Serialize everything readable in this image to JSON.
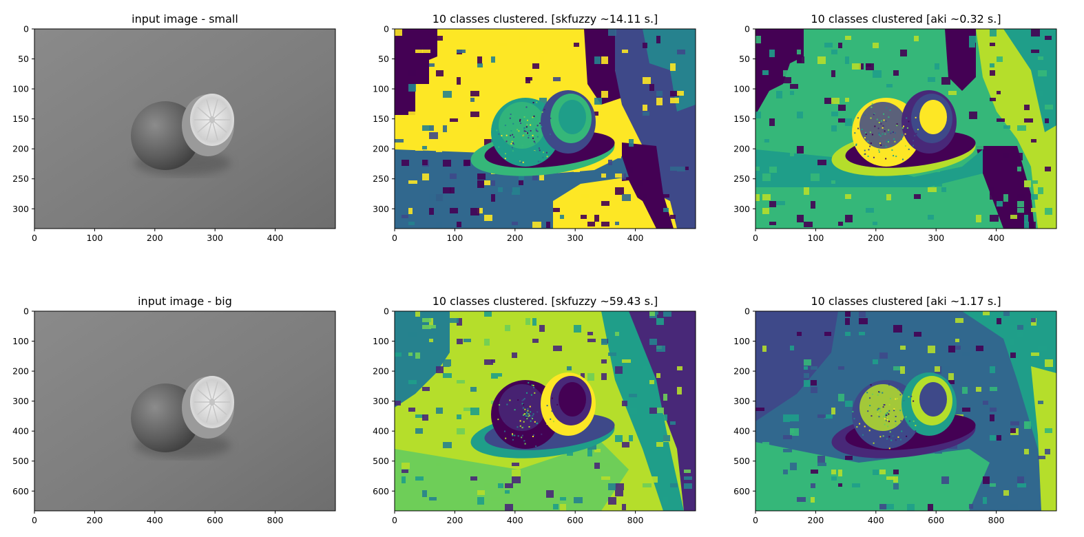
{
  "figure": {
    "layout": "2x3 grid of image panels"
  },
  "chart_data": [
    {
      "type": "heatmap",
      "title": "input image - small",
      "colormap": "gray",
      "image_shape": [
        333,
        500
      ],
      "xlim": [
        0,
        500
      ],
      "ylim": [
        333,
        0
      ],
      "xticks": [
        0,
        100,
        200,
        300,
        400
      ],
      "yticks": [
        0,
        50,
        100,
        150,
        200,
        250,
        300
      ]
    },
    {
      "type": "heatmap",
      "title": "10 classes clustered. [skfuzzy ~14.11 s.]",
      "colormap": "viridis",
      "classes": 10,
      "image_shape": [
        333,
        500
      ],
      "xlim": [
        0,
        500
      ],
      "ylim": [
        333,
        0
      ],
      "xticks": [
        0,
        100,
        200,
        300,
        400
      ],
      "yticks": [
        0,
        50,
        100,
        150,
        200,
        250,
        300
      ]
    },
    {
      "type": "heatmap",
      "title": "10 classes clustered [aki ~0.32 s.]",
      "colormap": "viridis",
      "classes": 10,
      "image_shape": [
        333,
        500
      ],
      "xlim": [
        0,
        500
      ],
      "ylim": [
        333,
        0
      ],
      "xticks": [
        0,
        100,
        200,
        300,
        400
      ],
      "yticks": [
        0,
        50,
        100,
        150,
        200,
        250,
        300
      ]
    },
    {
      "type": "heatmap",
      "title": "input image - big",
      "colormap": "gray",
      "image_shape": [
        666,
        1000
      ],
      "xlim": [
        0,
        1000
      ],
      "ylim": [
        666,
        0
      ],
      "xticks": [
        0,
        200,
        400,
        600,
        800
      ],
      "yticks": [
        0,
        100,
        200,
        300,
        400,
        500,
        600
      ]
    },
    {
      "type": "heatmap",
      "title": "10 classes clustered. [skfuzzy ~59.43 s.]",
      "colormap": "viridis",
      "classes": 10,
      "image_shape": [
        666,
        1000
      ],
      "xlim": [
        0,
        1000
      ],
      "ylim": [
        666,
        0
      ],
      "xticks": [
        0,
        200,
        400,
        600,
        800
      ],
      "yticks": [
        0,
        100,
        200,
        300,
        400,
        500,
        600
      ]
    },
    {
      "type": "heatmap",
      "title": "10 classes clustered [aki ~1.17 s.]",
      "colormap": "viridis",
      "classes": 10,
      "image_shape": [
        666,
        1000
      ],
      "xlim": [
        0,
        1000
      ],
      "ylim": [
        666,
        0
      ],
      "xticks": [
        0,
        200,
        400,
        600,
        800
      ],
      "yticks": [
        0,
        100,
        200,
        300,
        400,
        500,
        600
      ]
    }
  ]
}
